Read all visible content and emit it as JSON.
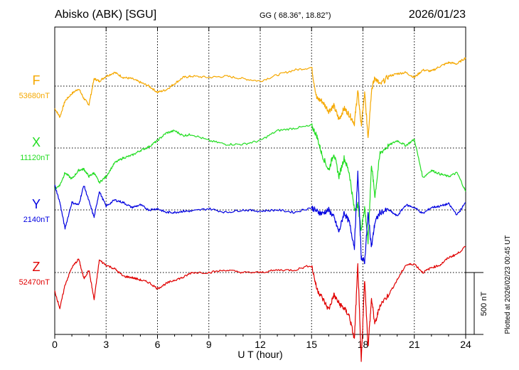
{
  "header": {
    "station": "Abisko (ABK)  [SGU]",
    "coords": "GG ( 68.36°,  18.82°)",
    "date": "2026/01/23"
  },
  "footer": {
    "plotted": "Plotted at 2026/02/23 00:45 UT"
  },
  "chart_data": {
    "type": "line",
    "title": "",
    "xlabel": "U T (hour)",
    "ylabel": "",
    "xlim": [
      0,
      24
    ],
    "x_ticks": [
      0,
      3,
      6,
      9,
      12,
      15,
      18,
      21,
      24
    ],
    "x_tick_labels": [
      "0",
      "3",
      "6",
      "9",
      "12",
      "15",
      "18",
      "21",
      "24"
    ],
    "grid": true,
    "scale_bar": {
      "label": "500 nT",
      "value_nT": 500
    },
    "series": [
      {
        "name": "F",
        "baseline_label": "53680nT",
        "baseline_nT": 53680,
        "color": "#f5a800",
        "x": [
          0,
          0.3,
          0.6,
          1,
          1.4,
          1.7,
          2,
          2.3,
          2.6,
          3,
          3.5,
          4,
          4.5,
          5,
          5.5,
          6,
          6.5,
          7,
          7.5,
          8,
          9,
          10,
          11,
          12,
          13,
          14,
          15,
          15.3,
          15.6,
          16,
          16.3,
          16.6,
          16.9,
          17.2,
          17.5,
          17.7,
          17.9,
          18.1,
          18.3,
          18.5,
          18.7,
          19,
          19.5,
          20,
          20.5,
          21,
          21.5,
          22,
          22.5,
          23,
          23.5,
          24
        ],
        "values": [
          -180,
          -250,
          -120,
          -60,
          -20,
          -100,
          -150,
          60,
          40,
          80,
          110,
          70,
          60,
          30,
          0,
          -50,
          -30,
          20,
          70,
          80,
          70,
          80,
          60,
          40,
          90,
          130,
          150,
          -100,
          -120,
          -200,
          -160,
          -270,
          -180,
          -230,
          -300,
          -40,
          -320,
          -60,
          -410,
          -30,
          70,
          10,
          80,
          100,
          110,
          70,
          130,
          120,
          160,
          190,
          180,
          230
        ]
      },
      {
        "name": "X",
        "baseline_label": "11120nT",
        "baseline_nT": 11120,
        "color": "#22dd22",
        "x": [
          0,
          0.3,
          0.6,
          1,
          1.4,
          1.7,
          2,
          2.3,
          2.6,
          3,
          3.5,
          4,
          4.5,
          5,
          5.5,
          6,
          6.5,
          7,
          7.5,
          8,
          9,
          10,
          11,
          12,
          13,
          14,
          15,
          15.3,
          15.6,
          16,
          16.3,
          16.6,
          16.9,
          17.2,
          17.5,
          17.7,
          17.9,
          18.1,
          18.3,
          18.5,
          18.7,
          19,
          19.5,
          20,
          20.5,
          21,
          21.5,
          22,
          22.5,
          23,
          23.5,
          24
        ],
        "values": [
          -330,
          -300,
          -200,
          -250,
          -180,
          -170,
          -230,
          -200,
          -280,
          -230,
          -120,
          -80,
          -60,
          -20,
          10,
          60,
          120,
          140,
          100,
          110,
          60,
          30,
          30,
          60,
          140,
          160,
          180,
          100,
          -50,
          -180,
          -40,
          -230,
          -80,
          -200,
          -500,
          -460,
          -660,
          -480,
          -760,
          -130,
          -390,
          -40,
          20,
          60,
          20,
          70,
          -240,
          -180,
          -210,
          -230,
          -200,
          -350
        ]
      },
      {
        "name": "Y",
        "baseline_label": "2140nT",
        "baseline_nT": 2140,
        "color": "#0000e0",
        "x": [
          0,
          0.3,
          0.6,
          1,
          1.4,
          1.7,
          2,
          2.3,
          2.6,
          3,
          3.5,
          4,
          4.5,
          5,
          5.5,
          6,
          6.5,
          7,
          7.5,
          8,
          9,
          10,
          11,
          12,
          13,
          14,
          15,
          15.3,
          15.6,
          16,
          16.3,
          16.6,
          16.9,
          17.2,
          17.5,
          17.7,
          17.9,
          18.1,
          18.3,
          18.5,
          18.7,
          19,
          19.5,
          20,
          20.5,
          21,
          21.5,
          22,
          22.5,
          23,
          23.5,
          24
        ],
        "values": [
          200,
          60,
          -150,
          60,
          40,
          200,
          70,
          -60,
          150,
          30,
          80,
          60,
          20,
          40,
          0,
          10,
          -20,
          -20,
          -10,
          -10,
          10,
          -20,
          0,
          -10,
          0,
          -20,
          20,
          -10,
          -30,
          0,
          -60,
          -180,
          -20,
          -100,
          -300,
          300,
          -380,
          -420,
          -30,
          -300,
          -100,
          -20,
          0,
          -50,
          40,
          20,
          -30,
          20,
          30,
          50,
          -40,
          60
        ]
      },
      {
        "name": "Z",
        "baseline_label": "52470nT",
        "baseline_nT": 52470,
        "color": "#e00000",
        "x": [
          0,
          0.3,
          0.6,
          1,
          1.4,
          1.7,
          2,
          2.3,
          2.6,
          3,
          3.5,
          4,
          4.5,
          5,
          5.5,
          6,
          6.5,
          7,
          7.5,
          8,
          9,
          10,
          11,
          12,
          13,
          14,
          15,
          15.3,
          15.6,
          16,
          16.3,
          16.6,
          16.9,
          17.2,
          17.5,
          17.7,
          17.9,
          18.1,
          18.3,
          18.5,
          18.7,
          19,
          19.5,
          20,
          20.5,
          21,
          21.5,
          22,
          22.5,
          23,
          23.5,
          24
        ],
        "values": [
          -150,
          -290,
          -100,
          40,
          110,
          -50,
          20,
          -220,
          100,
          60,
          30,
          -30,
          -40,
          -60,
          -80,
          -130,
          -90,
          -60,
          -40,
          0,
          0,
          20,
          0,
          0,
          20,
          20,
          60,
          -130,
          -200,
          -300,
          -180,
          -250,
          -290,
          -350,
          -540,
          60,
          -720,
          -50,
          -600,
          -210,
          -420,
          -260,
          -180,
          -60,
          60,
          70,
          0,
          40,
          60,
          120,
          150,
          210
        ]
      }
    ]
  }
}
